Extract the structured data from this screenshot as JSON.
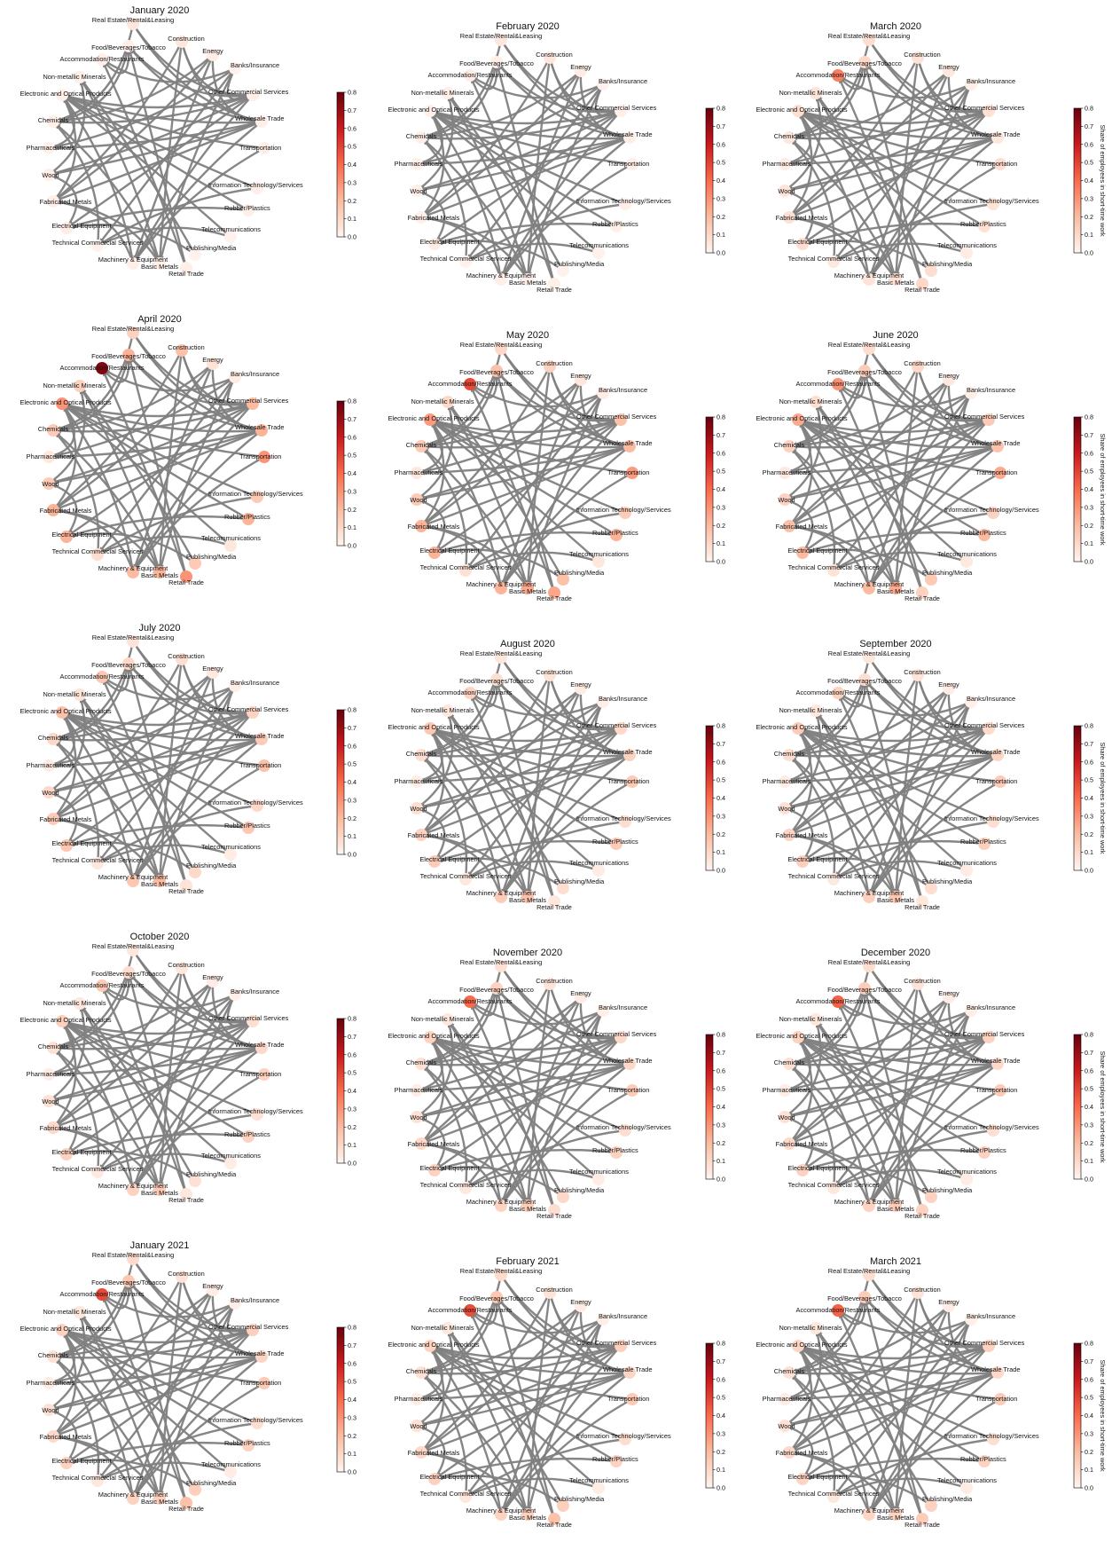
{
  "colorbar": {
    "label": "Share of employees in short-time work",
    "ticks": [
      "0.0",
      "0.1",
      "0.2",
      "0.3",
      "0.4",
      "0.5",
      "0.6",
      "0.7",
      "0.8"
    ],
    "min": 0,
    "max": 0.8,
    "colors": [
      "#fff5f0",
      "#fcbba1",
      "#fb6a4a",
      "#cb181d",
      "#67000d"
    ]
  },
  "edge_color": "#808080",
  "sectors": [
    "Real Estate/Rental&Leasing",
    "Construction",
    "Energy",
    "Banks/Insurance",
    "Other Commercial Services",
    "Wholesale Trade",
    "Transportation",
    "Information Technology/Services",
    "Rubber/Plastics",
    "Telecommunications",
    "Publishing/Media",
    "Retail Trade",
    "Basic Metals",
    "Machinery & Equipment",
    "Technical Commercial Services",
    "Electrical Equipment",
    "Fabricated Metals",
    "Wood",
    "Pharmaceuticals",
    "Chemicals",
    "Electronic and Optical Products",
    "Non-metallic Minerals",
    "Accommodation/Restaurants",
    "Food/Beverages/Tobacco"
  ],
  "edges": [
    [
      0,
      5
    ],
    [
      0,
      4
    ],
    [
      0,
      19
    ],
    [
      1,
      4
    ],
    [
      1,
      5
    ],
    [
      1,
      12
    ],
    [
      1,
      16
    ],
    [
      2,
      5
    ],
    [
      2,
      13
    ],
    [
      2,
      19
    ],
    [
      3,
      4
    ],
    [
      3,
      18
    ],
    [
      3,
      14
    ],
    [
      3,
      22
    ],
    [
      4,
      19
    ],
    [
      4,
      13
    ],
    [
      4,
      20
    ],
    [
      4,
      15
    ],
    [
      4,
      23
    ],
    [
      4,
      17
    ],
    [
      5,
      20
    ],
    [
      5,
      16
    ],
    [
      5,
      13
    ],
    [
      5,
      23
    ],
    [
      5,
      18
    ],
    [
      5,
      17
    ],
    [
      6,
      13
    ],
    [
      6,
      20
    ],
    [
      7,
      14
    ],
    [
      7,
      20
    ],
    [
      8,
      15
    ],
    [
      8,
      20
    ],
    [
      9,
      20
    ],
    [
      9,
      14
    ],
    [
      10,
      21
    ],
    [
      11,
      23
    ],
    [
      11,
      22
    ],
    [
      12,
      16
    ],
    [
      12,
      19
    ],
    [
      13,
      20
    ],
    [
      13,
      16
    ],
    [
      14,
      19
    ],
    [
      15,
      17
    ],
    [
      16,
      20
    ],
    [
      17,
      21
    ],
    [
      18,
      20
    ],
    [
      19,
      23
    ],
    [
      21,
      12
    ],
    [
      22,
      23
    ],
    [
      2,
      16
    ],
    [
      3,
      12
    ],
    [
      10,
      15
    ]
  ],
  "panels": [
    {
      "title": "January 2020",
      "values": [
        0.05,
        0.05,
        0.03,
        0.01,
        0.02,
        0.02,
        0.02,
        0.02,
        0.02,
        0.01,
        0.01,
        0.02,
        0.02,
        0.02,
        0.01,
        0.03,
        0.02,
        0.02,
        0.01,
        0.02,
        0.02,
        0.02,
        0.02,
        0.02
      ]
    },
    {
      "title": "February 2020",
      "values": [
        0.05,
        0.05,
        0.03,
        0.01,
        0.02,
        0.02,
        0.02,
        0.02,
        0.02,
        0.01,
        0.01,
        0.02,
        0.02,
        0.02,
        0.01,
        0.03,
        0.02,
        0.02,
        0.01,
        0.02,
        0.02,
        0.02,
        0.03,
        0.02
      ]
    },
    {
      "title": "March 2020",
      "values": [
        0.08,
        0.06,
        0.05,
        0.02,
        0.07,
        0.05,
        0.08,
        0.06,
        0.07,
        0.03,
        0.08,
        0.1,
        0.07,
        0.06,
        0.04,
        0.08,
        0.07,
        0.06,
        0.03,
        0.05,
        0.08,
        0.06,
        0.35,
        0.1
      ]
    },
    {
      "title": "April 2020",
      "values": [
        0.12,
        0.18,
        0.06,
        0.03,
        0.2,
        0.22,
        0.3,
        0.15,
        0.22,
        0.05,
        0.15,
        0.3,
        0.22,
        0.2,
        0.08,
        0.22,
        0.22,
        0.15,
        0.05,
        0.15,
        0.3,
        0.12,
        0.75,
        0.22
      ]
    },
    {
      "title": "May 2020",
      "values": [
        0.1,
        0.12,
        0.05,
        0.03,
        0.18,
        0.2,
        0.28,
        0.14,
        0.22,
        0.05,
        0.18,
        0.25,
        0.25,
        0.22,
        0.07,
        0.22,
        0.22,
        0.15,
        0.05,
        0.15,
        0.28,
        0.1,
        0.48,
        0.18
      ]
    },
    {
      "title": "June 2020",
      "values": [
        0.08,
        0.1,
        0.04,
        0.02,
        0.15,
        0.17,
        0.24,
        0.12,
        0.2,
        0.04,
        0.15,
        0.12,
        0.24,
        0.2,
        0.06,
        0.2,
        0.18,
        0.12,
        0.04,
        0.12,
        0.24,
        0.08,
        0.3,
        0.14
      ]
    },
    {
      "title": "July 2020",
      "values": [
        0.06,
        0.08,
        0.04,
        0.02,
        0.12,
        0.14,
        0.18,
        0.1,
        0.16,
        0.03,
        0.1,
        0.06,
        0.2,
        0.16,
        0.05,
        0.16,
        0.14,
        0.1,
        0.03,
        0.1,
        0.18,
        0.06,
        0.16,
        0.1
      ]
    },
    {
      "title": "August 2020",
      "values": [
        0.05,
        0.06,
        0.03,
        0.02,
        0.1,
        0.12,
        0.15,
        0.08,
        0.14,
        0.03,
        0.08,
        0.05,
        0.18,
        0.14,
        0.04,
        0.14,
        0.12,
        0.08,
        0.03,
        0.08,
        0.16,
        0.05,
        0.12,
        0.08
      ]
    },
    {
      "title": "September 2020",
      "values": [
        0.05,
        0.06,
        0.03,
        0.02,
        0.09,
        0.11,
        0.14,
        0.08,
        0.13,
        0.03,
        0.08,
        0.05,
        0.16,
        0.13,
        0.04,
        0.13,
        0.11,
        0.07,
        0.03,
        0.08,
        0.14,
        0.05,
        0.12,
        0.08
      ]
    },
    {
      "title": "October 2020",
      "values": [
        0.05,
        0.05,
        0.03,
        0.02,
        0.08,
        0.1,
        0.12,
        0.07,
        0.12,
        0.03,
        0.07,
        0.05,
        0.15,
        0.12,
        0.04,
        0.12,
        0.1,
        0.07,
        0.03,
        0.07,
        0.13,
        0.05,
        0.15,
        0.08
      ]
    },
    {
      "title": "November 2020",
      "values": [
        0.07,
        0.06,
        0.03,
        0.02,
        0.1,
        0.1,
        0.14,
        0.08,
        0.12,
        0.03,
        0.1,
        0.08,
        0.14,
        0.12,
        0.05,
        0.12,
        0.1,
        0.07,
        0.03,
        0.07,
        0.12,
        0.05,
        0.4,
        0.12
      ]
    },
    {
      "title": "December 2020",
      "values": [
        0.08,
        0.06,
        0.03,
        0.02,
        0.12,
        0.1,
        0.14,
        0.08,
        0.12,
        0.03,
        0.12,
        0.12,
        0.14,
        0.12,
        0.05,
        0.12,
        0.1,
        0.07,
        0.03,
        0.07,
        0.12,
        0.05,
        0.42,
        0.14
      ]
    },
    {
      "title": "January 2021",
      "values": [
        0.09,
        0.06,
        0.03,
        0.02,
        0.13,
        0.11,
        0.15,
        0.08,
        0.12,
        0.03,
        0.13,
        0.18,
        0.13,
        0.12,
        0.05,
        0.12,
        0.1,
        0.07,
        0.03,
        0.07,
        0.12,
        0.05,
        0.48,
        0.16
      ]
    },
    {
      "title": "February 2021",
      "values": [
        0.09,
        0.06,
        0.03,
        0.02,
        0.13,
        0.11,
        0.15,
        0.08,
        0.12,
        0.03,
        0.13,
        0.18,
        0.13,
        0.12,
        0.05,
        0.12,
        0.1,
        0.07,
        0.03,
        0.07,
        0.12,
        0.05,
        0.47,
        0.16
      ]
    },
    {
      "title": "March 2021",
      "values": [
        0.08,
        0.06,
        0.03,
        0.02,
        0.12,
        0.1,
        0.14,
        0.08,
        0.12,
        0.03,
        0.12,
        0.14,
        0.12,
        0.11,
        0.05,
        0.11,
        0.1,
        0.07,
        0.03,
        0.07,
        0.11,
        0.05,
        0.42,
        0.14
      ]
    }
  ]
}
